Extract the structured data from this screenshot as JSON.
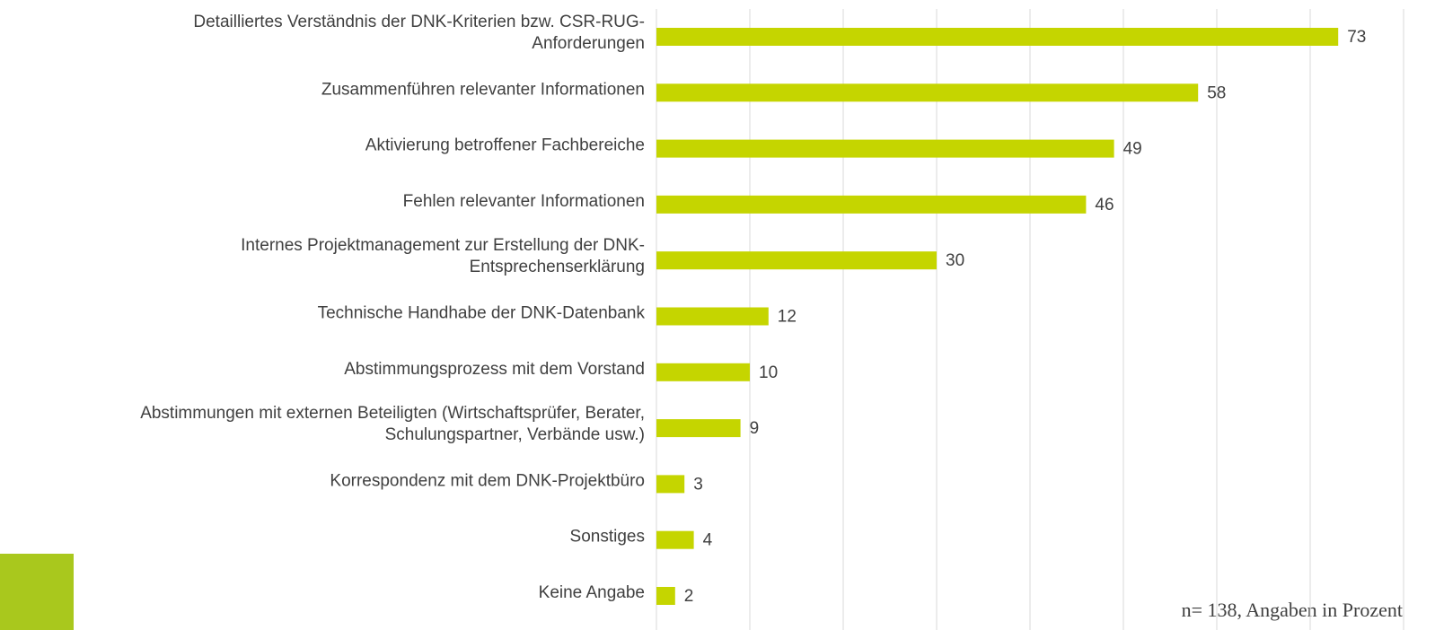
{
  "chart_data": {
    "type": "bar",
    "orientation": "horizontal",
    "categories": [
      [
        "Detailliertes Verständnis der DNK-Kriterien bzw. CSR-RUG-",
        "Anforderungen"
      ],
      [
        "Zusammenführen relevanter Informationen"
      ],
      [
        "Aktivierung betroffener Fachbereiche"
      ],
      [
        "Fehlen relevanter Informationen"
      ],
      [
        "Internes Projektmanagement zur Erstellung der DNK-",
        "Entsprechenserklärung"
      ],
      [
        "Technische Handhabe der DNK-Datenbank"
      ],
      [
        "Abstimmungsprozess mit dem Vorstand"
      ],
      [
        "Abstimmungen mit externen Beteiligten (Wirtschaftsprüfer, Berater,",
        "Schulungspartner, Verbände usw.)"
      ],
      [
        "Korrespondenz mit dem DNK-Projektbüro"
      ],
      [
        "Sonstiges"
      ],
      [
        "Keine Angabe"
      ]
    ],
    "values": [
      73,
      58,
      49,
      46,
      30,
      12,
      10,
      9,
      3,
      4,
      2
    ],
    "color": "#c5d500",
    "xlim": [
      0,
      80
    ],
    "xticks": [
      0,
      10,
      20,
      30,
      40,
      50,
      60,
      70,
      80
    ],
    "grid": true,
    "footnote": "n= 138, Angaben in Prozent"
  }
}
